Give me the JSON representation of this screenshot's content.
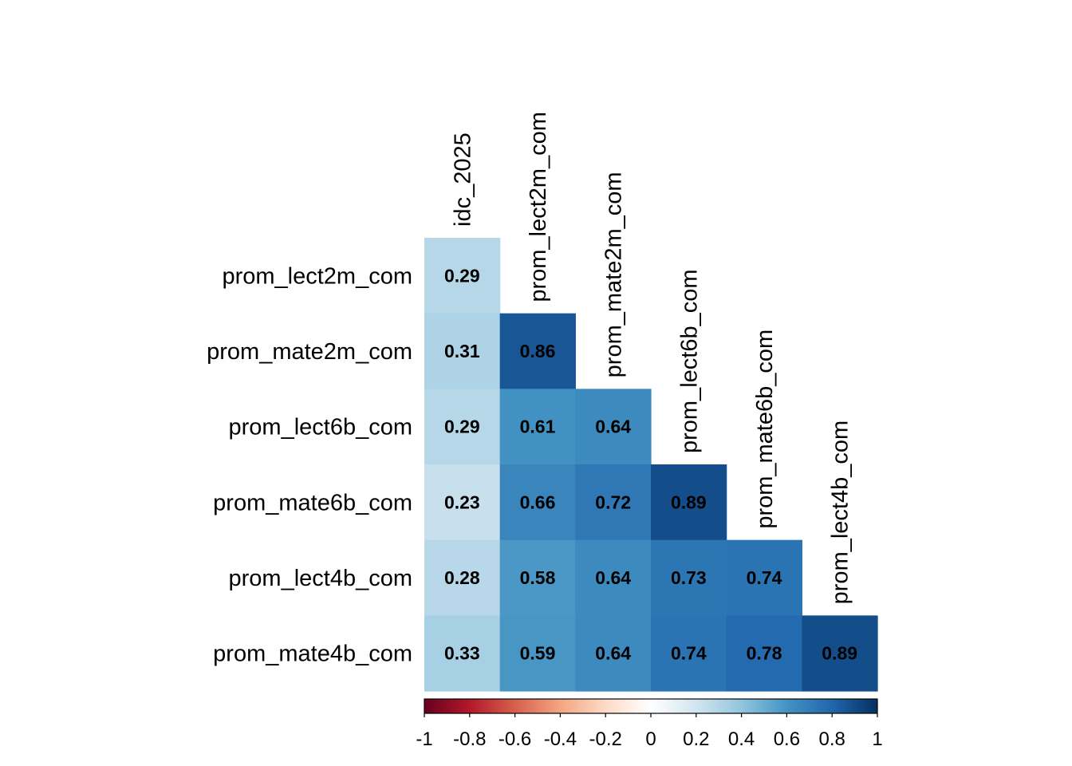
{
  "chart_data": {
    "type": "heatmap",
    "title": "",
    "columns": [
      "idc_2025",
      "prom_lect2m_com",
      "prom_mate2m_com",
      "prom_lect6b_com",
      "prom_mate6b_com",
      "prom_lect4b_com"
    ],
    "rows": [
      "prom_lect2m_com",
      "prom_mate2m_com",
      "prom_lect6b_com",
      "prom_mate6b_com",
      "prom_lect4b_com",
      "prom_mate4b_com"
    ],
    "values": [
      [
        0.29,
        null,
        null,
        null,
        null,
        null
      ],
      [
        0.31,
        0.86,
        null,
        null,
        null,
        null
      ],
      [
        0.29,
        0.61,
        0.64,
        null,
        null,
        null
      ],
      [
        0.23,
        0.66,
        0.72,
        0.89,
        null,
        null
      ],
      [
        0.28,
        0.58,
        0.64,
        0.73,
        0.74,
        null
      ],
      [
        0.33,
        0.59,
        0.64,
        0.74,
        0.78,
        0.89
      ]
    ],
    "value_labels": [
      [
        "0.29",
        null,
        null,
        null,
        null,
        null
      ],
      [
        "0.31",
        "0.86",
        null,
        null,
        null,
        null
      ],
      [
        "0.29",
        "0.61",
        "0.64",
        null,
        null,
        null
      ],
      [
        "0.23",
        "0.66",
        "0.72",
        "0.89",
        null,
        null
      ],
      [
        "0.28",
        "0.58",
        "0.64",
        "0.73",
        "0.74",
        null
      ],
      [
        "0.33",
        "0.59",
        "0.64",
        "0.74",
        "0.78",
        "0.89"
      ]
    ],
    "color_scale": {
      "range": [
        -1,
        1
      ],
      "colors": [
        "#67001F",
        "#B2182B",
        "#D6604D",
        "#F4A582",
        "#FDDBC7",
        "#FFFFFF",
        "#D1E5F0",
        "#92C5DE",
        "#4393C3",
        "#2166AC",
        "#053061"
      ],
      "ticks": [
        -1,
        -0.8,
        -0.6,
        -0.4,
        -0.2,
        0,
        0.2,
        0.4,
        0.6,
        0.8,
        1
      ],
      "tick_labels": [
        "-1",
        "-0.8",
        "-0.6",
        "-0.4",
        "-0.2",
        "0",
        "0.2",
        "0.4",
        "0.6",
        "0.8",
        "1"
      ],
      "legend_placement": "bottom"
    }
  }
}
